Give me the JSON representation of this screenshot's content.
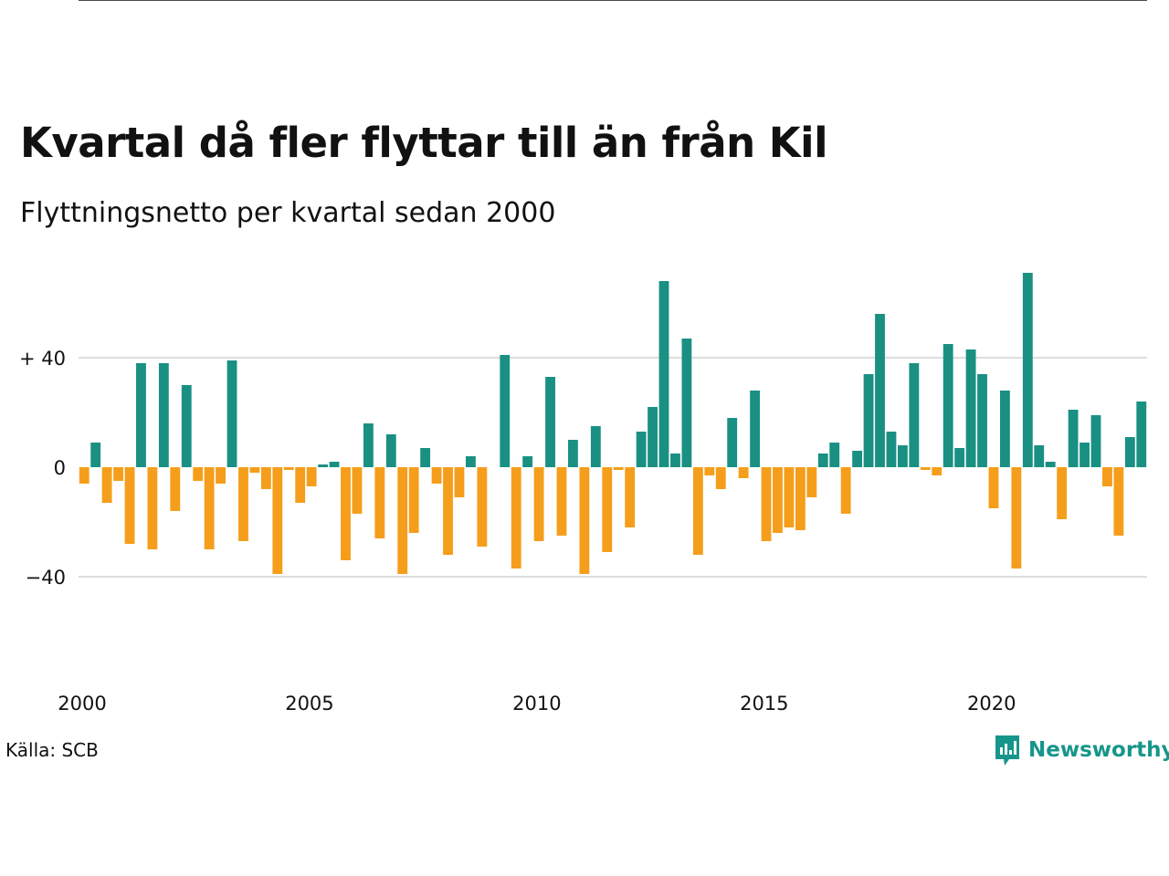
{
  "title": "Kvartal då fler flyttar till än från Kil",
  "subtitle": "Flyttningsnetto per kvartal sedan 2000",
  "source": "Källa: SCB",
  "brand": "Newsworthy",
  "colors": {
    "positive": "#1a9083",
    "negative": "#f59e1b",
    "grid": "#dddddd",
    "brand": "#16968a"
  },
  "chart_data": {
    "type": "bar",
    "x_tick_labels": [
      "2000",
      "2005",
      "2010",
      "2015",
      "2020"
    ],
    "y_tick_labels": [
      "+ 40",
      "0",
      "−40"
    ],
    "y_ticks": [
      40,
      0,
      -40
    ],
    "ylim": [
      -75,
      75
    ],
    "x_start_year": 2000,
    "grid": true,
    "values": [
      -6,
      9,
      -13,
      -5,
      -28,
      38,
      -30,
      38,
      -16,
      30,
      -5,
      -30,
      -6,
      39,
      -27,
      -2,
      -8,
      -39,
      -1,
      -13,
      -7,
      1,
      2,
      -34,
      -17,
      16,
      -26,
      12,
      -39,
      -24,
      7,
      -6,
      -32,
      -11,
      4,
      -29,
      0,
      41,
      -37,
      4,
      -27,
      33,
      -25,
      10,
      -39,
      15,
      -31,
      -1,
      -22,
      13,
      22,
      68,
      5,
      47,
      -32,
      -3,
      -8,
      18,
      -4,
      28,
      -27,
      -24,
      -22,
      -23,
      -11,
      5,
      9,
      -17,
      6,
      34,
      56,
      13,
      8,
      38,
      -1,
      -3,
      45,
      7,
      43,
      34,
      -15,
      28,
      -37,
      71,
      8,
      2,
      -19,
      21,
      9,
      19,
      -7,
      -25,
      11,
      24
    ]
  }
}
